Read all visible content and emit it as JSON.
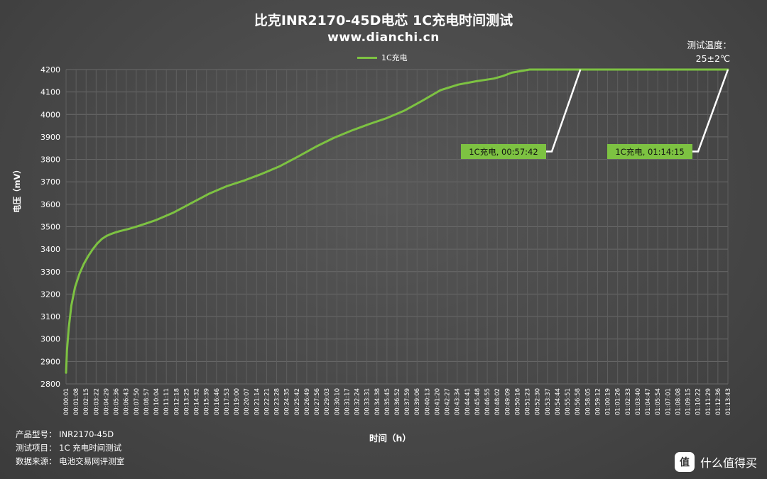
{
  "chart_data": {
    "type": "line",
    "title": "比克INR2170-45D电芯 1C充电时间测试",
    "subtitle": "www.dianchi.cn",
    "ylabel": "电压（mV）",
    "xlabel": "时间（h）",
    "ylim": [
      2800,
      4200
    ],
    "yticks": [
      2800,
      2900,
      3000,
      3100,
      3200,
      3300,
      3400,
      3500,
      3600,
      3700,
      3800,
      3900,
      4000,
      4100,
      4200
    ],
    "grid": true,
    "legend_position": "top-center",
    "xtick_labels": [
      "00:00:01",
      "00:01:08",
      "00:02:15",
      "00:03:22",
      "00:04:29",
      "00:05:36",
      "00:06:43",
      "00:07:50",
      "00:08:57",
      "00:10:04",
      "00:11:11",
      "00:12:18",
      "00:13:25",
      "00:14:32",
      "00:15:39",
      "00:16:46",
      "00:17:53",
      "00:19:00",
      "00:20:07",
      "00:21:14",
      "00:22:21",
      "00:23:28",
      "00:24:35",
      "00:25:42",
      "00:26:49",
      "00:27:56",
      "00:29:03",
      "00:30:10",
      "00:31:17",
      "00:32:24",
      "00:33:31",
      "00:34:38",
      "00:35:45",
      "00:36:52",
      "00:37:59",
      "00:39:06",
      "00:40:13",
      "00:41:20",
      "00:42:27",
      "00:43:34",
      "00:44:41",
      "00:45:48",
      "00:46:55",
      "00:48:02",
      "00:49:09",
      "00:50:16",
      "00:51:23",
      "00:52:30",
      "00:53:37",
      "00:54:44",
      "00:55:51",
      "00:56:58",
      "00:58:05",
      "00:59:12",
      "01:00:19",
      "01:01:26",
      "01:02:33",
      "01:03:40",
      "01:04:47",
      "01:05:54",
      "01:07:01",
      "01:08:08",
      "01:09:15",
      "01:10:22",
      "01:11:29",
      "01:12:36",
      "01:13:43"
    ],
    "series": [
      {
        "name": "1C充电",
        "color": "#7dc242",
        "x_minutes": [
          0,
          0.1,
          0.3,
          0.6,
          1.0,
          1.5,
          2.0,
          2.5,
          3.0,
          3.5,
          4.0,
          4.5,
          5.0,
          5.5,
          6.0,
          7.0,
          8.0,
          9.0,
          10.0,
          12.0,
          14.0,
          16.0,
          18.0,
          20.0,
          22.0,
          24.0,
          26.0,
          28.0,
          30.0,
          32.0,
          34.0,
          36.0,
          38.0,
          40.0,
          42.0,
          44.0,
          46.0,
          48.0,
          49.0,
          50.0,
          52.0,
          54.0,
          56.0,
          57.7,
          60.0,
          65.0,
          70.0,
          74.25
        ],
        "y_mV": [
          2850,
          2950,
          3050,
          3150,
          3230,
          3290,
          3335,
          3370,
          3400,
          3425,
          3445,
          3458,
          3467,
          3474,
          3480,
          3490,
          3502,
          3515,
          3528,
          3562,
          3604,
          3646,
          3680,
          3706,
          3736,
          3770,
          3812,
          3856,
          3895,
          3928,
          3957,
          3984,
          4018,
          4062,
          4108,
          4133,
          4148,
          4160,
          4171,
          4186,
          4200,
          4200,
          4200,
          4200,
          4200,
          4200,
          4200,
          4200
        ]
      }
    ],
    "annotations": [
      {
        "text": "1C充电, 00:57:42",
        "x_minutes": 57.7,
        "y_mV": 4200
      },
      {
        "text": "1C充电, 01:14:15",
        "x_minutes": 74.25,
        "y_mV": 4200
      }
    ]
  },
  "temperature": {
    "label": "测试温度：",
    "value": "25±2℃"
  },
  "footer": {
    "model": "产品型号：  INR2170-45D",
    "test_item": "测试项目：  1C 充电时间测试",
    "source": "数据来源：  电池交易网评测室"
  },
  "brand": {
    "badge": "值",
    "text": "什么值得买"
  }
}
